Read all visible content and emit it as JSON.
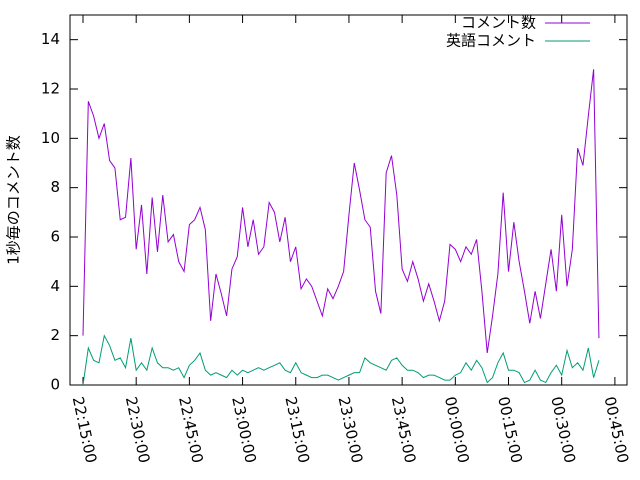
{
  "chart_data": {
    "type": "line",
    "y_label": "1秒毎のコメント数",
    "x": [
      "22:15:00",
      "22:16:30",
      "22:18:00",
      "22:19:30",
      "22:21:00",
      "22:22:30",
      "22:24:00",
      "22:25:30",
      "22:27:00",
      "22:28:30",
      "22:30:00",
      "22:31:30",
      "22:33:00",
      "22:34:30",
      "22:36:00",
      "22:37:30",
      "22:39:00",
      "22:40:30",
      "22:42:00",
      "22:43:30",
      "22:45:00",
      "22:46:30",
      "22:48:00",
      "22:49:30",
      "22:51:00",
      "22:52:30",
      "22:54:00",
      "22:55:30",
      "22:57:00",
      "22:58:30",
      "23:00:00",
      "23:01:30",
      "23:03:00",
      "23:04:30",
      "23:06:00",
      "23:07:30",
      "23:09:00",
      "23:10:30",
      "23:12:00",
      "23:13:30",
      "23:15:00",
      "23:16:30",
      "23:18:00",
      "23:19:30",
      "23:21:00",
      "23:22:30",
      "23:24:00",
      "23:25:30",
      "23:27:00",
      "23:28:30",
      "23:30:00",
      "23:31:30",
      "23:33:00",
      "23:34:30",
      "23:36:00",
      "23:37:30",
      "23:39:00",
      "23:40:30",
      "23:42:00",
      "23:43:30",
      "23:45:00",
      "23:46:30",
      "23:48:00",
      "23:49:30",
      "23:51:00",
      "23:52:30",
      "23:54:00",
      "23:55:30",
      "23:57:00",
      "23:58:30",
      "00:00:00",
      "00:01:30",
      "00:03:00",
      "00:04:30",
      "00:06:00",
      "00:07:30",
      "00:09:00",
      "00:10:30",
      "00:12:00",
      "00:13:30",
      "00:15:00",
      "00:16:30",
      "00:18:00",
      "00:19:30",
      "00:21:00",
      "00:22:30",
      "00:24:00",
      "00:25:30",
      "00:27:00",
      "00:28:30",
      "00:30:00",
      "00:31:30",
      "00:33:00",
      "00:34:30",
      "00:36:00",
      "00:37:30",
      "00:39:00",
      "00:40:30"
    ],
    "series": [
      {
        "name": "コメント数",
        "color": "#9400d3",
        "values": [
          2.0,
          11.5,
          10.9,
          10.0,
          10.6,
          9.1,
          8.8,
          6.7,
          6.8,
          9.2,
          5.5,
          7.3,
          4.5,
          7.6,
          5.4,
          7.7,
          5.8,
          6.1,
          5.0,
          4.6,
          6.5,
          6.7,
          7.2,
          6.3,
          2.6,
          4.5,
          3.7,
          2.8,
          4.7,
          5.2,
          7.2,
          5.6,
          6.7,
          5.3,
          5.6,
          7.4,
          7.0,
          5.8,
          6.8,
          5.0,
          5.6,
          3.9,
          4.3,
          4.0,
          3.4,
          2.8,
          3.9,
          3.5,
          4.0,
          4.6,
          6.9,
          9.0,
          7.9,
          6.7,
          6.4,
          3.8,
          2.9,
          8.6,
          9.3,
          7.7,
          4.7,
          4.2,
          5.0,
          4.3,
          3.4,
          4.1,
          3.4,
          2.6,
          3.4,
          5.7,
          5.5,
          5.0,
          5.6,
          5.3,
          5.9,
          3.8,
          1.3,
          2.8,
          4.5,
          7.8,
          4.6,
          6.6,
          5.0,
          3.8,
          2.5,
          3.8,
          2.7,
          4.1,
          5.5,
          3.8,
          6.9,
          4.0,
          5.5,
          9.6,
          8.9,
          10.9,
          12.8,
          1.9
        ]
      },
      {
        "name": "英語コメント",
        "color": "#009e73",
        "values": [
          0.0,
          1.5,
          1.0,
          0.9,
          2.0,
          1.6,
          1.0,
          1.1,
          0.7,
          1.9,
          0.6,
          0.9,
          0.6,
          1.5,
          0.9,
          0.7,
          0.7,
          0.6,
          0.7,
          0.3,
          0.8,
          1.0,
          1.3,
          0.6,
          0.4,
          0.5,
          0.4,
          0.3,
          0.6,
          0.4,
          0.6,
          0.5,
          0.6,
          0.7,
          0.6,
          0.7,
          0.8,
          0.9,
          0.6,
          0.5,
          0.9,
          0.5,
          0.4,
          0.3,
          0.3,
          0.4,
          0.4,
          0.3,
          0.2,
          0.3,
          0.4,
          0.5,
          0.5,
          1.1,
          0.9,
          0.8,
          0.7,
          0.6,
          1.0,
          1.1,
          0.8,
          0.6,
          0.6,
          0.5,
          0.3,
          0.4,
          0.4,
          0.3,
          0.2,
          0.2,
          0.4,
          0.5,
          0.9,
          0.6,
          1.0,
          0.7,
          0.1,
          0.3,
          0.9,
          1.3,
          0.6,
          0.6,
          0.5,
          0.1,
          0.2,
          0.6,
          0.2,
          0.1,
          0.5,
          0.8,
          0.4,
          1.4,
          0.7,
          0.9,
          0.6,
          1.5,
          0.3,
          1.0
        ]
      }
    ],
    "xlim": [
      "22:11:20",
      "00:48:25"
    ],
    "xticks": [
      "22:15:00",
      "22:30:00",
      "22:45:00",
      "23:00:00",
      "23:15:00",
      "23:30:00",
      "23:45:00",
      "00:00:00",
      "00:15:00",
      "00:30:00",
      "00:45:00"
    ],
    "ylim": [
      0,
      15
    ],
    "yticks": [
      0,
      2,
      4,
      6,
      8,
      10,
      12,
      14
    ],
    "legend": "top-right"
  }
}
